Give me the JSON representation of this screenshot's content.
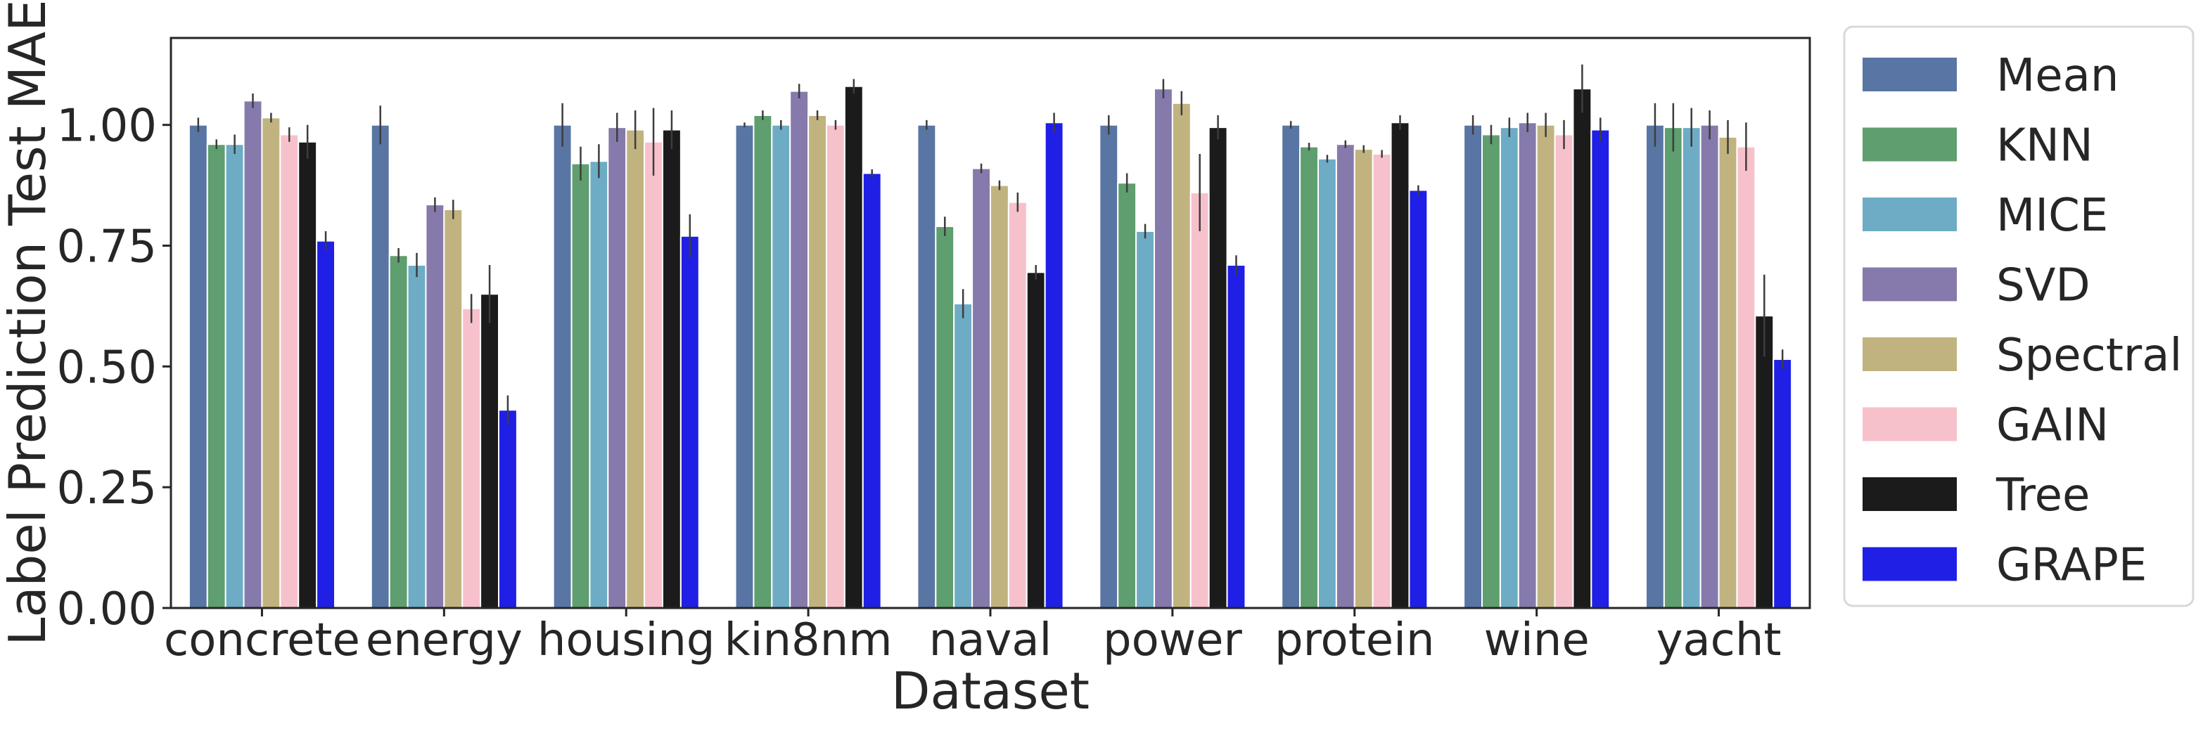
{
  "chart_data": {
    "type": "bar",
    "title": "",
    "xlabel": "Dataset",
    "ylabel": "Label Prediction Test MAE",
    "ylim": [
      0,
      1.18
    ],
    "yticks": [
      "0.00",
      "0.25",
      "0.50",
      "0.75",
      "1.00"
    ],
    "grid": false,
    "legend_position": "right (outside)",
    "categories": [
      "concrete",
      "energy",
      "housing",
      "kin8nm",
      "naval",
      "power",
      "protein",
      "wine",
      "yacht"
    ],
    "series": [
      {
        "name": "Mean",
        "color": "#5975A4",
        "values": [
          1.0,
          1.0,
          1.0,
          1.0,
          1.0,
          1.0,
          1.0,
          1.0,
          1.0
        ],
        "errors": [
          0.015,
          0.04,
          0.045,
          0.005,
          0.01,
          0.02,
          0.008,
          0.02,
          0.045
        ]
      },
      {
        "name": "KNN",
        "color": "#5F9E6E",
        "values": [
          0.96,
          0.73,
          0.92,
          1.02,
          0.79,
          0.88,
          0.955,
          0.98,
          0.995
        ],
        "errors": [
          0.01,
          0.015,
          0.035,
          0.01,
          0.02,
          0.02,
          0.008,
          0.02,
          0.05
        ]
      },
      {
        "name": "MICE",
        "color": "#6DACC4",
        "values": [
          0.96,
          0.71,
          0.925,
          1.0,
          0.63,
          0.78,
          0.93,
          0.995,
          0.995
        ],
        "errors": [
          0.02,
          0.025,
          0.035,
          0.01,
          0.03,
          0.015,
          0.008,
          0.02,
          0.04
        ]
      },
      {
        "name": "SVD",
        "color": "#857AAB",
        "values": [
          1.05,
          0.835,
          0.995,
          1.07,
          0.91,
          1.075,
          0.96,
          1.005,
          1.0
        ],
        "errors": [
          0.015,
          0.015,
          0.03,
          0.015,
          0.01,
          0.02,
          0.008,
          0.02,
          0.03
        ]
      },
      {
        "name": "Spectral",
        "color": "#C1B37F",
        "values": [
          1.015,
          0.825,
          0.99,
          1.02,
          0.875,
          1.045,
          0.95,
          1.0,
          0.975
        ],
        "errors": [
          0.01,
          0.02,
          0.04,
          0.01,
          0.01,
          0.025,
          0.008,
          0.025,
          0.035
        ]
      },
      {
        "name": "GAIN",
        "color": "#F7C1CB",
        "values": [
          0.98,
          0.62,
          0.965,
          1.0,
          0.84,
          0.86,
          0.94,
          0.98,
          0.955
        ],
        "errors": [
          0.015,
          0.03,
          0.07,
          0.01,
          0.02,
          0.08,
          0.008,
          0.03,
          0.05
        ]
      },
      {
        "name": "Tree",
        "color": "#1B1B1B",
        "values": [
          0.965,
          0.65,
          0.99,
          1.08,
          0.695,
          0.995,
          1.005,
          1.075,
          0.605
        ],
        "errors": [
          0.035,
          0.06,
          0.04,
          0.015,
          0.015,
          0.025,
          0.015,
          0.05,
          0.085
        ]
      },
      {
        "name": "GRAPE",
        "color": "#1F1FE6",
        "values": [
          0.76,
          0.41,
          0.77,
          0.9,
          1.005,
          0.71,
          0.865,
          0.99,
          0.515
        ],
        "errors": [
          0.02,
          0.03,
          0.045,
          0.008,
          0.02,
          0.02,
          0.01,
          0.025,
          0.02
        ]
      }
    ]
  }
}
